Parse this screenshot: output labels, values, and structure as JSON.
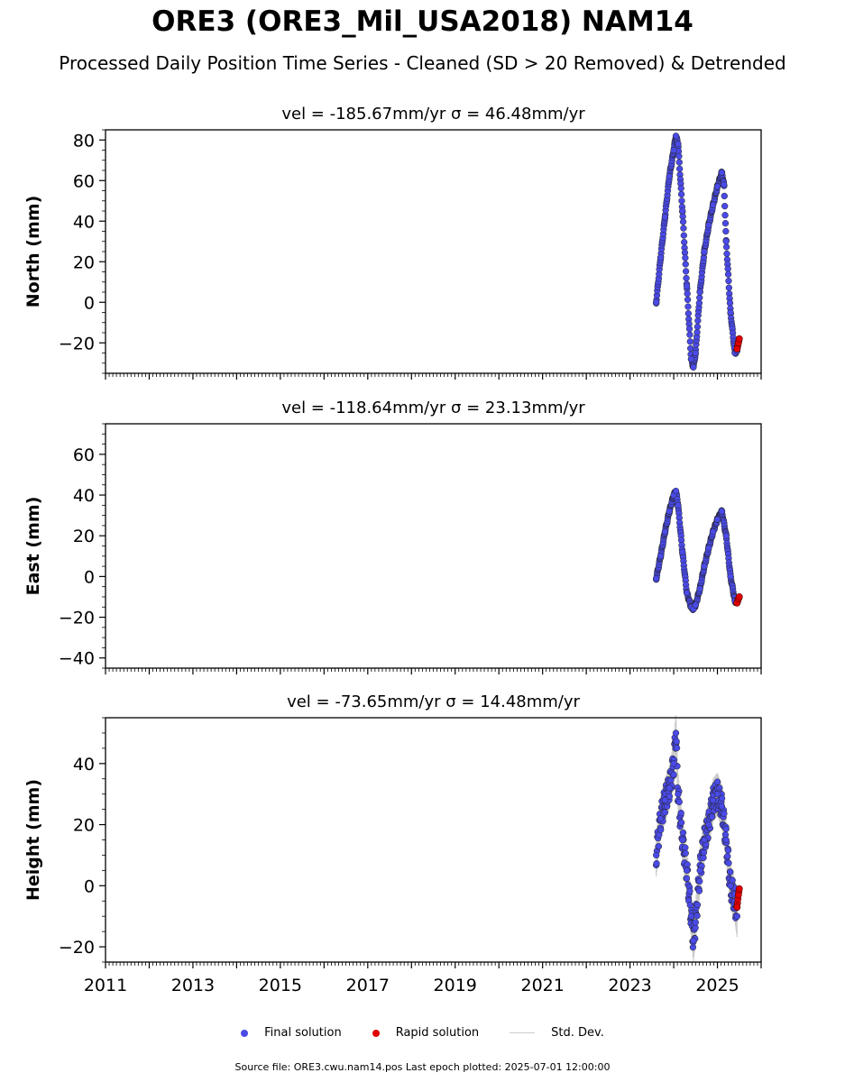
{
  "figure": {
    "title": "ORE3 (ORE3_Mil_USA2018) NAM14",
    "subtitle": "Processed Daily Position Time Series - Cleaned (SD > 20 Removed) & Detrended",
    "footer": "Source file: ORE3.cwu.nam14.pos  Last epoch plotted: 2025-07-01 12:00:00"
  },
  "legend": {
    "final_label": "Final solution",
    "rapid_label": "Rapid solution",
    "std_label": "Std. Dev.",
    "final_color": "#4a4ae8",
    "rapid_color": "#e00000",
    "std_color": "#cccccc"
  },
  "chart_data": [
    {
      "type": "scatter",
      "title": "vel = -185.67mm/yr   σ = 46.48mm/yr",
      "ylabel": "North (mm)",
      "xlabel": "",
      "xlim": [
        2011,
        2026
      ],
      "ylim": [
        -35,
        85
      ],
      "yticks": [
        -20,
        0,
        20,
        40,
        60,
        80
      ],
      "xtick_labels": [
        "2011",
        "2013",
        "2015",
        "2017",
        "2019",
        "2021",
        "2023",
        "2025"
      ],
      "series": [
        {
          "name": "Final solution",
          "x": [
            2023.6,
            2023.7,
            2023.8,
            2023.9,
            2024.0,
            2024.05,
            2024.1,
            2024.2,
            2024.3,
            2024.4,
            2024.45,
            2024.5,
            2024.6,
            2024.7,
            2024.8,
            2024.9,
            2025.0,
            2025.1,
            2025.15,
            2025.2,
            2025.3,
            2025.4,
            2025.45
          ],
          "y": [
            0,
            22,
            42,
            62,
            75,
            82,
            78,
            45,
            8,
            -28,
            -32,
            -25,
            5,
            25,
            38,
            48,
            57,
            64,
            58,
            30,
            -5,
            -25,
            -24
          ]
        },
        {
          "name": "Rapid solution",
          "x": [
            2025.45,
            2025.48,
            2025.5
          ],
          "y": [
            -23,
            -20,
            -18
          ]
        }
      ]
    },
    {
      "type": "scatter",
      "title": "vel = -118.64mm/yr   σ = 23.13mm/yr",
      "ylabel": "East (mm)",
      "xlabel": "",
      "xlim": [
        2011,
        2026
      ],
      "ylim": [
        -45,
        75
      ],
      "yticks": [
        -40,
        -20,
        0,
        20,
        40,
        60
      ],
      "xtick_labels": [
        "2011",
        "2013",
        "2015",
        "2017",
        "2019",
        "2021",
        "2023",
        "2025"
      ],
      "series": [
        {
          "name": "Final solution",
          "x": [
            2023.6,
            2023.7,
            2023.8,
            2023.9,
            2024.0,
            2024.05,
            2024.1,
            2024.2,
            2024.3,
            2024.4,
            2024.45,
            2024.5,
            2024.6,
            2024.7,
            2024.8,
            2024.9,
            2025.0,
            2025.1,
            2025.2,
            2025.3,
            2025.4,
            2025.45
          ],
          "y": [
            -1,
            10,
            22,
            32,
            40,
            42,
            35,
            12,
            -8,
            -15,
            -16,
            -14,
            -6,
            5,
            14,
            22,
            28,
            32,
            20,
            0,
            -12,
            -13
          ]
        },
        {
          "name": "Rapid solution",
          "x": [
            2025.45,
            2025.48,
            2025.5
          ],
          "y": [
            -13,
            -11,
            -10
          ]
        }
      ]
    },
    {
      "type": "scatter",
      "title": "vel = -73.65mm/yr   σ = 14.48mm/yr",
      "ylabel": "Height (mm)",
      "xlabel": "",
      "xlim": [
        2011,
        2026
      ],
      "ylim": [
        -25,
        55
      ],
      "yticks": [
        -20,
        0,
        20,
        40
      ],
      "xtick_labels": [
        "2011",
        "2013",
        "2015",
        "2017",
        "2019",
        "2021",
        "2023",
        "2025"
      ],
      "series": [
        {
          "name": "Final solution",
          "x": [
            2023.6,
            2023.7,
            2023.8,
            2023.9,
            2024.0,
            2024.05,
            2024.1,
            2024.2,
            2024.3,
            2024.4,
            2024.45,
            2024.5,
            2024.6,
            2024.7,
            2024.8,
            2024.9,
            2025.0,
            2025.1,
            2025.2,
            2025.3,
            2025.4,
            2025.45
          ],
          "y": [
            10,
            22,
            28,
            32,
            40,
            50,
            30,
            15,
            5,
            -10,
            -18,
            -12,
            5,
            15,
            20,
            28,
            30,
            26,
            15,
            0,
            -5,
            -10
          ]
        },
        {
          "name": "Rapid solution",
          "x": [
            2025.45,
            2025.48,
            2025.5
          ],
          "y": [
            -7,
            -3,
            -1
          ]
        }
      ]
    }
  ]
}
